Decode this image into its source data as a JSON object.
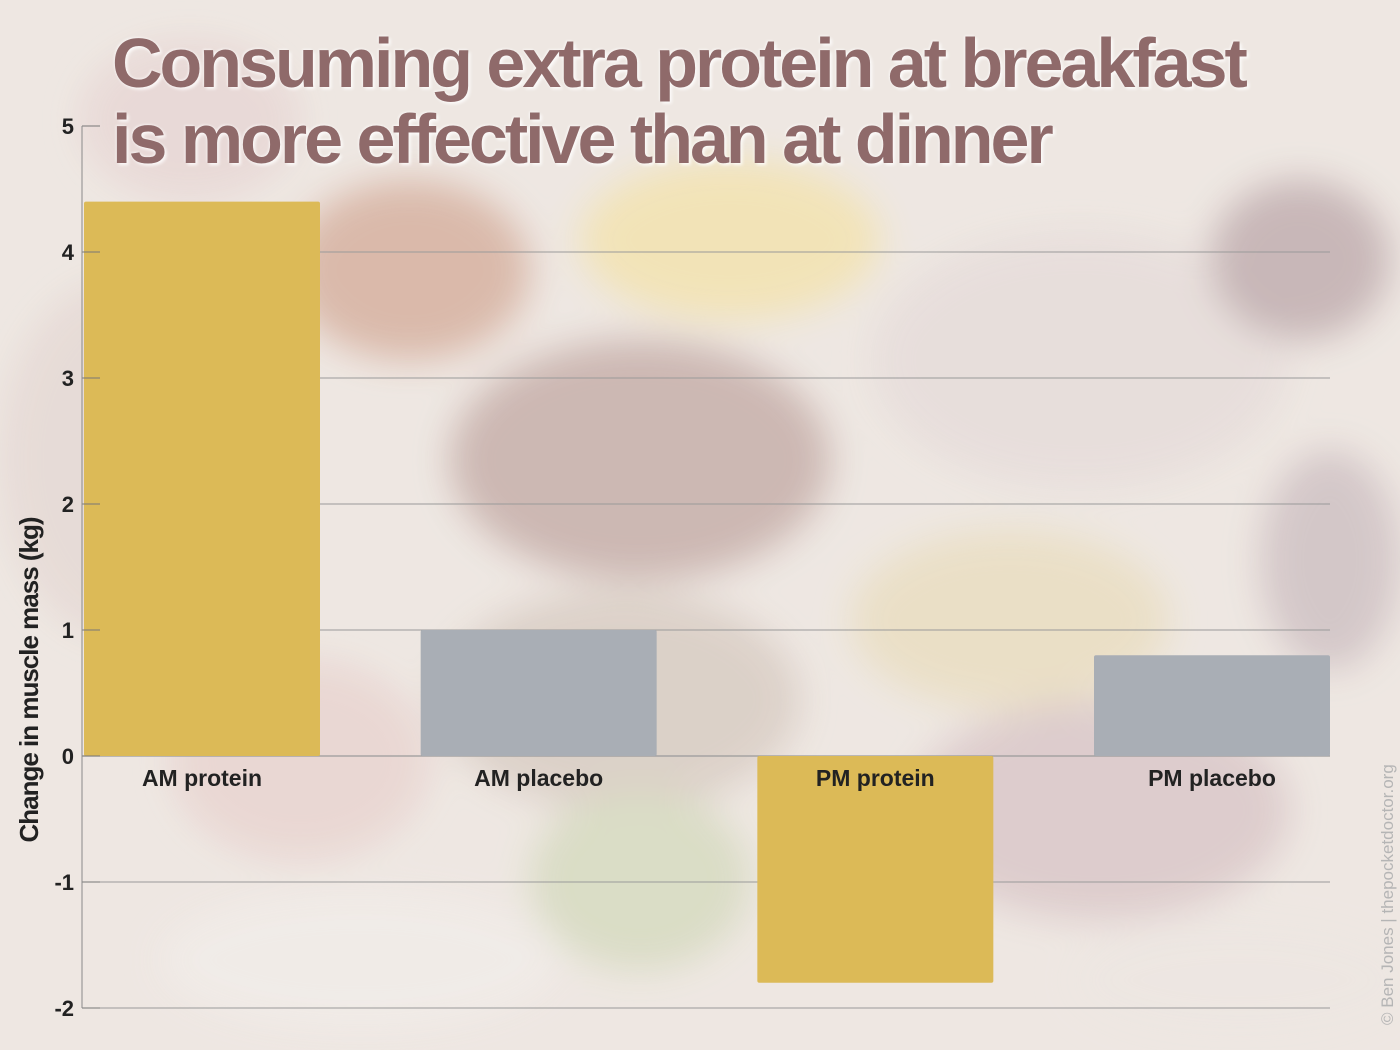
{
  "title_lines": [
    "Consuming extra protein at breakfast",
    "is more effective than at dinner"
  ],
  "credit": "© Ben Jones | thepocketdoctor.org",
  "colors": {
    "protein": "#dcba57",
    "placebo": "#a9aeb5",
    "title": "#8f6a6a",
    "axis_text": "#222222",
    "grid": "#9a9a9a"
  },
  "chart_data": {
    "type": "bar",
    "title": "Consuming extra protein at breakfast is more effective than at dinner",
    "xlabel": "",
    "ylabel": "Change in muscle mass (kg)",
    "categories": [
      "AM protein",
      "AM placebo",
      "PM protein",
      "PM placebo"
    ],
    "values": [
      4.4,
      1.0,
      -1.8,
      0.8
    ],
    "groups": [
      "protein",
      "placebo",
      "protein",
      "placebo"
    ],
    "ylim": [
      -2,
      5
    ],
    "yticks": [
      5,
      4,
      3,
      2,
      1,
      0,
      -1,
      -2
    ],
    "grid": true,
    "legend": "none"
  }
}
